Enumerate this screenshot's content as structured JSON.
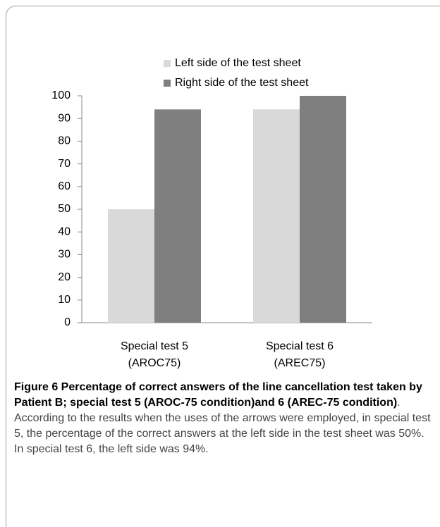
{
  "chart_data": {
    "type": "bar",
    "categories": [
      "Special test 5\n(AROC75)",
      "Special test 6\n(AREC75)"
    ],
    "series": [
      {
        "name": "Left side of the test sheet",
        "color": "#d9d9d9",
        "values": [
          50,
          94
        ]
      },
      {
        "name": "Right side of the test sheet",
        "color": "#7f7f7f",
        "values": [
          94,
          100
        ]
      }
    ],
    "ylim": [
      0,
      100
    ],
    "yticks": [
      0,
      10,
      20,
      30,
      40,
      50,
      60,
      70,
      80,
      90,
      100
    ],
    "grid": false,
    "legend": "top"
  },
  "caption": {
    "title": "Figure 6 Percentage of correct answers of the line cancellation test taken by Patient B; special test 5 (AROC-75 condition)and 6 (AREC-75 condition)",
    "text": ". According to the results when the uses of the arrows were employed, in special test 5, the percentage of the correct answers at the left side in the test sheet was 50%. In special test 6, the left side was 94%."
  }
}
